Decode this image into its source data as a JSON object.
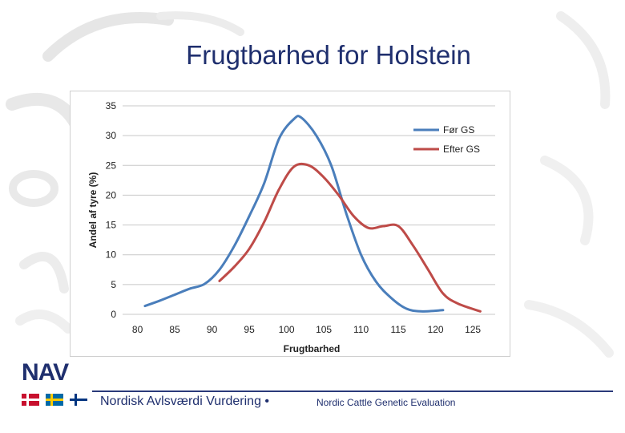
{
  "slide": {
    "title": "Frugtbarhed for Holstein",
    "brand": "NAV",
    "footer_left": "Nordisk Avlsværdi Vurdering •",
    "footer_right": "Nordic Cattle Genetic Evaluation"
  },
  "colors": {
    "title": "#1f2f6e",
    "series_before": "#4a7ebb",
    "series_after": "#be4b48",
    "grid": "#c8c8c8"
  },
  "chart_data": {
    "type": "line",
    "title": "",
    "xlabel": "Frugtbarhed",
    "ylabel": "Andel af tyre (%)",
    "xlim": [
      78,
      128
    ],
    "ylim": [
      0,
      35
    ],
    "xticks": [
      80,
      85,
      90,
      95,
      100,
      105,
      110,
      115,
      120,
      125
    ],
    "yticks": [
      0,
      5,
      10,
      15,
      20,
      25,
      30,
      35
    ],
    "grid": true,
    "legend_position": "top-right",
    "series": [
      {
        "name": "Før GS",
        "color": "#4a7ebb",
        "x": [
          81,
          83,
          85,
          87,
          89,
          91,
          93,
          95,
          97,
          99,
          101,
          102,
          104,
          106,
          108,
          110,
          112,
          114,
          116,
          118,
          121
        ],
        "y": [
          1.4,
          2.3,
          3.3,
          4.3,
          5.1,
          7.5,
          11.5,
          16.5,
          22.0,
          29.5,
          32.8,
          33.0,
          30.0,
          25.0,
          17.0,
          10.0,
          5.5,
          2.8,
          1.0,
          0.5,
          0.7
        ]
      },
      {
        "name": "Efter GS",
        "color": "#be4b48",
        "x": [
          91,
          93,
          95,
          97,
          99,
          101,
          103,
          105,
          107,
          109,
          111,
          113,
          115,
          117,
          119,
          121,
          123,
          126
        ],
        "y": [
          5.6,
          8.0,
          11.0,
          15.5,
          21.0,
          24.8,
          25.0,
          23.0,
          20.0,
          16.5,
          14.5,
          14.8,
          14.8,
          11.5,
          7.5,
          3.5,
          1.8,
          0.5
        ]
      }
    ]
  }
}
